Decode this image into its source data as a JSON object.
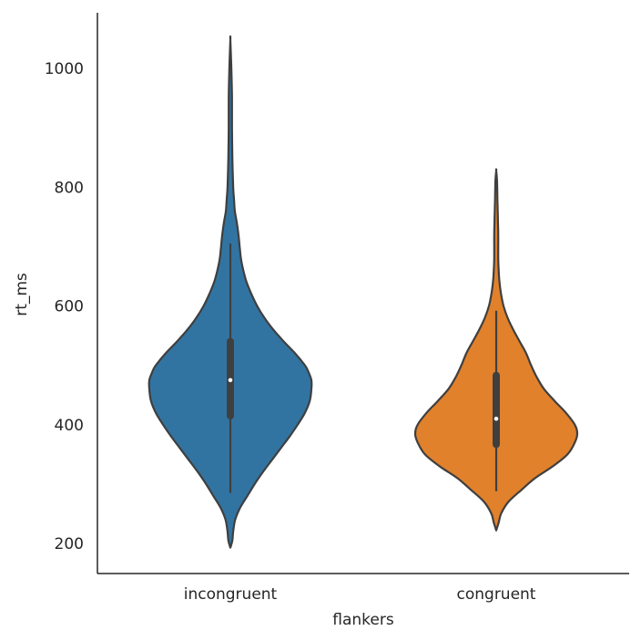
{
  "chart_data": {
    "type": "violin",
    "xlabel": "flankers",
    "ylabel": "rt_ms",
    "categories": [
      "incongruent",
      "congruent"
    ],
    "ylim": [
      150,
      1090
    ],
    "yticks": [
      200,
      400,
      600,
      800,
      1000
    ],
    "grid": false,
    "colors": {
      "incongruent": "#3274a1",
      "congruent": "#e1812c",
      "edge": "#3f3f3f",
      "inner": "#3f3f3f",
      "median": "#ffffff"
    },
    "violins": [
      {
        "category": "incongruent",
        "min": 193,
        "max": 1048,
        "whisker_low": 285,
        "whisker_high": 705,
        "q1": 415,
        "median": 475,
        "q3": 540,
        "density": [
          [
            193,
            0.0
          ],
          [
            205,
            0.025
          ],
          [
            220,
            0.035
          ],
          [
            240,
            0.06
          ],
          [
            260,
            0.12
          ],
          [
            280,
            0.21
          ],
          [
            300,
            0.3
          ],
          [
            320,
            0.4
          ],
          [
            340,
            0.51
          ],
          [
            360,
            0.62
          ],
          [
            380,
            0.73
          ],
          [
            400,
            0.83
          ],
          [
            420,
            0.92
          ],
          [
            440,
            0.98
          ],
          [
            460,
            1.0
          ],
          [
            475,
            1.0
          ],
          [
            490,
            0.96
          ],
          [
            500,
            0.92
          ],
          [
            520,
            0.8
          ],
          [
            540,
            0.66
          ],
          [
            560,
            0.53
          ],
          [
            580,
            0.42
          ],
          [
            600,
            0.33
          ],
          [
            620,
            0.26
          ],
          [
            640,
            0.2
          ],
          [
            660,
            0.16
          ],
          [
            680,
            0.13
          ],
          [
            700,
            0.115
          ],
          [
            720,
            0.1
          ],
          [
            740,
            0.08
          ],
          [
            760,
            0.055
          ],
          [
            780,
            0.045
          ],
          [
            800,
            0.035
          ],
          [
            850,
            0.025
          ],
          [
            900,
            0.02
          ],
          [
            950,
            0.02
          ],
          [
            1000,
            0.012
          ],
          [
            1048,
            0.0
          ]
        ]
      },
      {
        "category": "congruent",
        "min": 222,
        "max": 828,
        "whisker_low": 288,
        "whisker_high": 592,
        "q1": 367,
        "median": 410,
        "q3": 483,
        "density": [
          [
            222,
            0.0
          ],
          [
            235,
            0.03
          ],
          [
            250,
            0.06
          ],
          [
            270,
            0.15
          ],
          [
            290,
            0.31
          ],
          [
            310,
            0.48
          ],
          [
            330,
            0.7
          ],
          [
            350,
            0.88
          ],
          [
            370,
            0.97
          ],
          [
            385,
            1.0
          ],
          [
            400,
            0.97
          ],
          [
            420,
            0.86
          ],
          [
            440,
            0.72
          ],
          [
            460,
            0.59
          ],
          [
            480,
            0.5
          ],
          [
            500,
            0.43
          ],
          [
            520,
            0.37
          ],
          [
            540,
            0.29
          ],
          [
            560,
            0.21
          ],
          [
            580,
            0.14
          ],
          [
            600,
            0.09
          ],
          [
            620,
            0.06
          ],
          [
            640,
            0.04
          ],
          [
            660,
            0.03
          ],
          [
            680,
            0.025
          ],
          [
            700,
            0.025
          ],
          [
            720,
            0.025
          ],
          [
            750,
            0.02
          ],
          [
            780,
            0.015
          ],
          [
            810,
            0.01
          ],
          [
            828,
            0.0
          ]
        ]
      }
    ]
  }
}
